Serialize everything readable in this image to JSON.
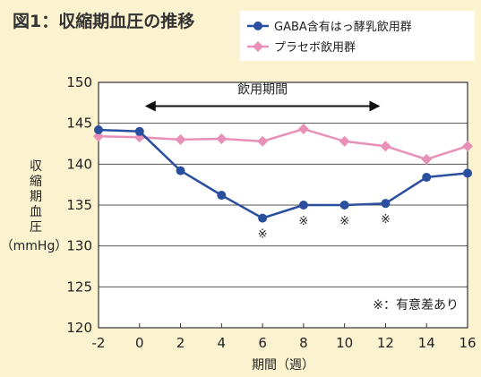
{
  "chart_data": {
    "type": "line",
    "title": "図1：収縮期血圧の推移",
    "xlabel": "期間（週）",
    "ylabel_lines": [
      "収",
      "縮",
      "期",
      "血",
      "圧"
    ],
    "ylabel_unit": "（mmHg）",
    "x_ticks": [
      -2,
      0,
      2,
      4,
      6,
      8,
      10,
      12,
      14,
      16
    ],
    "y_ticks": [
      120,
      125,
      130,
      135,
      140,
      145,
      150
    ],
    "xlim": [
      -2,
      16
    ],
    "ylim": [
      120,
      150
    ],
    "grid": true,
    "legend_position": "top-right",
    "series": [
      {
        "name": "GABA含有はっ酵乳飲用群",
        "color": "#2a4f9e",
        "marker": "circle",
        "x": [
          -2,
          0,
          2,
          4,
          6,
          8,
          10,
          12,
          14,
          16
        ],
        "y": [
          144.2,
          144.0,
          139.2,
          136.2,
          133.4,
          135.0,
          135.0,
          135.2,
          138.4,
          138.9
        ]
      },
      {
        "name": "プラセボ飲用群",
        "color": "#e890b8",
        "marker": "diamond",
        "x": [
          -2,
          0,
          2,
          4,
          6,
          8,
          10,
          12,
          14,
          16
        ],
        "y": [
          143.4,
          143.3,
          143.0,
          143.1,
          142.8,
          144.3,
          142.8,
          142.2,
          140.6,
          142.2
        ]
      }
    ],
    "period_annotation": {
      "label": "飲用期間",
      "x_start": 0,
      "x_end": 12
    },
    "significance_marks": [
      {
        "x": 6,
        "symbol": "※"
      },
      {
        "x": 8,
        "symbol": "※"
      },
      {
        "x": 10,
        "symbol": "※"
      },
      {
        "x": 12,
        "symbol": "※"
      }
    ],
    "footnote": "※：有意差あり"
  }
}
